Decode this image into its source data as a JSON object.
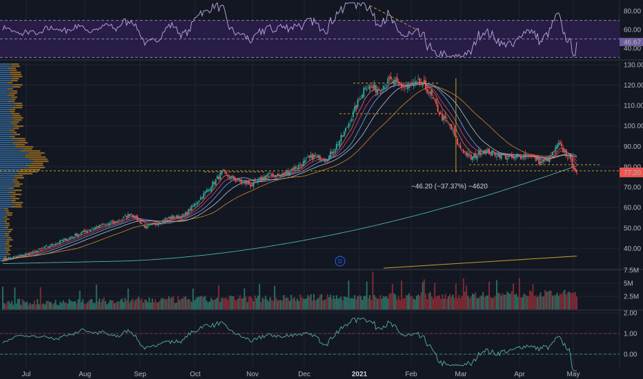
{
  "colors": {
    "background": "#131722",
    "grid": "#1f2431",
    "up": "#26a69a",
    "down": "#ef5350",
    "volume_up": "#2c6b62",
    "volume_down": "#7e2b34",
    "rsi_line": "#b39ddb",
    "rsi_band": "#2b1f4d",
    "ema_short": "#e57373",
    "ema_mid": "#ec407a",
    "sma_blue": "#64b5f6",
    "sma_orange": "#d18b2c",
    "sma_long": "#4db6ac",
    "sma_light": "#c0c4cc",
    "vp_blue": "#3b74a8",
    "vp_orange": "#b07d25",
    "osc_line": "#4fa397",
    "price_tag": "#ef5350",
    "rsi_tag": "#6e5c9c"
  },
  "chart_data": [
    {
      "type": "line",
      "title": "",
      "panel": "rsi",
      "ylim": [
        28,
        92
      ],
      "y_ticks": [
        "80.00",
        "60.00",
        "40.00"
      ],
      "y_tick_values": [
        80,
        60,
        40
      ],
      "band": [
        30,
        70
      ],
      "mid_level": 50,
      "last_value_label": "46.67",
      "last_value": 46.67
    },
    {
      "type": "candlestick",
      "title": "",
      "panel": "price",
      "ylim": [
        30,
        132
      ],
      "y_ticks": [
        "130.00",
        "120.00",
        "110.00",
        "100.00",
        "90.00",
        "80.00",
        "70.00",
        "60.00",
        "50.00",
        "40.00"
      ],
      "y_tick_values": [
        130,
        120,
        110,
        100,
        90,
        80,
        70,
        60,
        50,
        40
      ],
      "last_price_label": "77.20",
      "last_price": 77.2,
      "x_labels": [
        "Jul",
        "Aug",
        "Sep",
        "Oct",
        "Nov",
        "Dec",
        "2021",
        "Feb",
        "Mar",
        "Apr",
        "May"
      ],
      "anchors": [
        [
          0,
          34.5
        ],
        [
          20,
          38
        ],
        [
          40,
          44
        ],
        [
          60,
          50
        ],
        [
          75,
          53
        ],
        [
          85,
          57
        ],
        [
          95,
          50
        ],
        [
          110,
          55
        ],
        [
          120,
          56
        ],
        [
          135,
          68
        ],
        [
          145,
          77
        ],
        [
          155,
          73
        ],
        [
          165,
          71
        ],
        [
          175,
          76
        ],
        [
          185,
          76
        ],
        [
          195,
          80
        ],
        [
          205,
          85
        ],
        [
          215,
          84
        ],
        [
          225,
          95
        ],
        [
          232,
          106
        ],
        [
          240,
          120
        ],
        [
          248,
          118
        ],
        [
          256,
          122
        ],
        [
          266,
          119
        ],
        [
          276,
          121
        ],
        [
          282,
          117
        ],
        [
          290,
          105
        ],
        [
          296,
          100
        ],
        [
          302,
          90
        ],
        [
          310,
          84
        ],
        [
          318,
          88
        ],
        [
          328,
          86
        ],
        [
          338,
          84
        ],
        [
          348,
          86
        ],
        [
          356,
          82
        ],
        [
          362,
          84
        ],
        [
          368,
          91
        ],
        [
          374,
          85
        ],
        [
          380,
          77.2
        ]
      ],
      "measure_label": "−46.20 (−37.37%) −4620",
      "measure_change": -46.2,
      "measure_percent": -37.37,
      "measure_ticks": -4620,
      "ref_lines": [
        78,
        81,
        106,
        121
      ],
      "indicator_label": "D"
    },
    {
      "type": "bar",
      "title": "",
      "panel": "volume",
      "ylim": [
        0,
        7.5
      ],
      "y_ticks": [
        "7.5M",
        "5M",
        "2.5M"
      ],
      "y_tick_values": [
        7.5,
        5,
        2.5
      ],
      "unit": "M"
    },
    {
      "type": "line",
      "title": "",
      "panel": "oscillator",
      "ylim": [
        -0.6,
        2.1
      ],
      "y_ticks": [
        "2.00",
        "1.00",
        "0.00"
      ],
      "y_tick_values": [
        2,
        1,
        0
      ],
      "ref_levels": [
        1,
        0
      ]
    }
  ]
}
